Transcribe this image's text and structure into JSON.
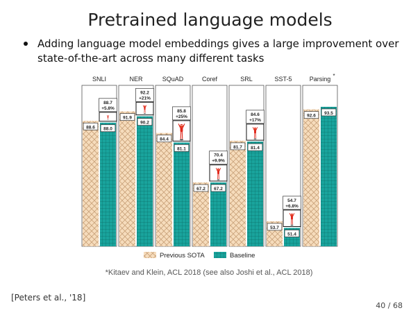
{
  "slide": {
    "title": "Pretrained language models",
    "bullet": "Adding language model embeddings gives a large improvement over state-of-the-art across many different tasks",
    "citation": "[Peters et al., '18]",
    "page_number": "40 / 68"
  },
  "colors": {
    "previous_sota_fill": "#f6dcbc",
    "previous_sota_hatch": "#c9a27a",
    "baseline_fill": "#19a39c",
    "baseline_grid": "#0a6f6a",
    "elmo_red": "#e0261a",
    "panel_border": "#555555"
  },
  "chart_data": {
    "type": "bar",
    "categories": [
      "SNLI",
      "NER",
      "SQuAD",
      "Coref",
      "SRL",
      "SST-5",
      "Parsing"
    ],
    "parsing_marker": "*",
    "series": [
      {
        "name": "Previous SOTA",
        "values": [
          88.6,
          91.9,
          84.4,
          67.2,
          81.7,
          53.7,
          92.6
        ]
      },
      {
        "name": "Baseline",
        "values": [
          88.0,
          90.2,
          81.1,
          67.2,
          81.4,
          51.4,
          93.5
        ]
      }
    ],
    "elmo": {
      "values": [
        88.7,
        92.2,
        85.8,
        70.4,
        84.6,
        54.7,
        null
      ],
      "value_labels": [
        "88.7",
        "92.2",
        "85.8",
        "70.4",
        "84.6",
        "54.7",
        ""
      ],
      "gains": [
        "+5.8%",
        "+21%",
        "+25%",
        "+9.9%",
        "+17%",
        "+6.8%",
        ""
      ]
    },
    "previous_labels": [
      "88.6",
      "91.9",
      "84.4",
      "67.2",
      "81.7",
      "53.7",
      "92.6"
    ],
    "baseline_labels": [
      "88.0",
      "90.2",
      "81.1",
      "67.2",
      "81.4",
      "51.4",
      "93.5"
    ],
    "legend": {
      "previous": "Previous SOTA",
      "baseline": "Baseline",
      "placement": "bottom"
    },
    "footnote": "*Kitaev and Klein, ACL 2018   (see also Joshi et al., ACL 2018)"
  }
}
